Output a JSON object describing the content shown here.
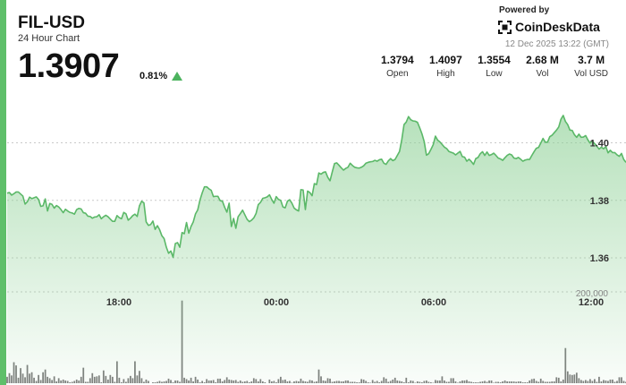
{
  "header": {
    "symbol": "FIL-USD",
    "subtitle": "24 Hour Chart",
    "price": "1.3907",
    "change": "0.81%",
    "change_direction": "up",
    "powered_by": "Powered by",
    "brand": "CoinDeskData",
    "timestamp": "12 Dec 2025 13:22 (GMT)"
  },
  "stats": [
    {
      "value": "1.3794",
      "label": "Open"
    },
    {
      "value": "1.4097",
      "label": "High"
    },
    {
      "value": "1.3554",
      "label": "Low"
    },
    {
      "value": "2.68 M",
      "label": "Vol"
    },
    {
      "value": "3.7 M",
      "label": "Vol USD"
    }
  ],
  "colors": {
    "accent": "#5fbf6a",
    "line": "#5bb868",
    "volume_bars": "#7d7d7d",
    "up": "#4cb35e"
  },
  "chart_data": {
    "type": "area",
    "title": "FIL-USD",
    "price_axis": {
      "ticks": [
        1.36,
        1.38,
        1.4
      ],
      "tick_labels": [
        "1.36",
        "1.38",
        "1.40"
      ],
      "ylim": [
        1.3485,
        1.4185
      ]
    },
    "volume_axis": {
      "tick_label": "200,000",
      "tick_value": 200000,
      "ylim": [
        0,
        200000
      ]
    },
    "time_axis": {
      "tick_labels": [
        "18:00",
        "00:00",
        "06:00",
        "12:00"
      ]
    },
    "price": [
      1.3825,
      1.3827,
      1.3818,
      1.3823,
      1.3829,
      1.3829,
      1.3822,
      1.3815,
      1.3787,
      1.3795,
      1.3811,
      1.3806,
      1.3809,
      1.3812,
      1.3803,
      1.3779,
      1.3781,
      1.3805,
      1.3763,
      1.3789,
      1.3786,
      1.3773,
      1.3782,
      1.3777,
      1.3768,
      1.3757,
      1.3769,
      1.3763,
      1.3758,
      1.3756,
      1.3752,
      1.3768,
      1.3772,
      1.377,
      1.3757,
      1.3755,
      1.3745,
      1.3744,
      1.3738,
      1.3742,
      1.3743,
      1.375,
      1.3736,
      1.3743,
      1.3748,
      1.3743,
      1.3735,
      1.3727,
      1.3727,
      1.3747,
      1.374,
      1.3736,
      1.3758,
      1.3753,
      1.3731,
      1.3738,
      1.3747,
      1.3752,
      1.3744,
      1.3781,
      1.3797,
      1.3791,
      1.3725,
      1.3713,
      1.3716,
      1.3728,
      1.3699,
      1.3712,
      1.3698,
      1.3677,
      1.3667,
      1.3637,
      1.3616,
      1.3624,
      1.3602,
      1.365,
      1.3653,
      1.3637,
      1.3688,
      1.3684,
      1.3723,
      1.3686,
      1.3709,
      1.3725,
      1.3753,
      1.3767,
      1.3801,
      1.3826,
      1.3847,
      1.3847,
      1.384,
      1.3835,
      1.3813,
      1.3814,
      1.3814,
      1.3799,
      1.3797,
      1.3776,
      1.3759,
      1.379,
      1.3709,
      1.3737,
      1.3703,
      1.3743,
      1.3754,
      1.3766,
      1.375,
      1.3734,
      1.3726,
      1.3731,
      1.3739,
      1.3754,
      1.3785,
      1.3793,
      1.3807,
      1.3809,
      1.3812,
      1.3819,
      1.3803,
      1.379,
      1.3813,
      1.3803,
      1.38,
      1.3777,
      1.3774,
      1.3797,
      1.3802,
      1.379,
      1.3773,
      1.3767,
      1.3763,
      1.3837,
      1.3836,
      1.3768,
      1.3832,
      1.3827,
      1.3816,
      1.3858,
      1.3855,
      1.3895,
      1.3891,
      1.3897,
      1.3899,
      1.388,
      1.3868,
      1.3899,
      1.3928,
      1.393,
      1.3922,
      1.3913,
      1.3905,
      1.3911,
      1.3915,
      1.3929,
      1.3921,
      1.3915,
      1.3913,
      1.3912,
      1.3915,
      1.392,
      1.3929,
      1.3932,
      1.3934,
      1.3935,
      1.3939,
      1.3936,
      1.3941,
      1.3943,
      1.3929,
      1.3925,
      1.3937,
      1.3945,
      1.3938,
      1.3942,
      1.3956,
      1.397,
      1.4011,
      1.4063,
      1.4072,
      1.4091,
      1.408,
      1.4076,
      1.4075,
      1.4071,
      1.4052,
      1.4031,
      1.4004,
      1.3957,
      1.3962,
      1.3977,
      1.3993,
      1.4023,
      1.4009,
      1.4003,
      1.3994,
      1.3985,
      1.398,
      1.397,
      1.3967,
      1.3964,
      1.3958,
      1.3964,
      1.397,
      1.3952,
      1.395,
      1.3936,
      1.3943,
      1.3935,
      1.3925,
      1.3945,
      1.3949,
      1.3962,
      1.3969,
      1.3956,
      1.3968,
      1.3956,
      1.3959,
      1.3964,
      1.3956,
      1.3947,
      1.3944,
      1.3939,
      1.3948,
      1.3956,
      1.3961,
      1.3958,
      1.3947,
      1.3945,
      1.3949,
      1.3943,
      1.3936,
      1.394,
      1.3942,
      1.3942,
      1.3956,
      1.3969,
      1.3981,
      1.3984,
      1.3999,
      1.4015,
      1.4002,
      1.4002,
      1.4021,
      1.4026,
      1.4035,
      1.4044,
      1.4055,
      1.4082,
      1.4095,
      1.4074,
      1.4063,
      1.4044,
      1.4043,
      1.4028,
      1.4019,
      1.403,
      1.4019,
      1.402,
      1.4025,
      1.401,
      1.3999,
      1.4006,
      1.3997,
      1.3988,
      1.3978,
      1.3985,
      1.3979,
      1.3987,
      1.3965,
      1.3974,
      1.3966,
      1.3966,
      1.3958,
      1.3953,
      1.3963,
      1.3942,
      1.3932
    ],
    "volume": [
      14000,
      22000,
      17000,
      46000,
      39000,
      12000,
      33000,
      21000,
      13000,
      40000,
      21000,
      24000,
      12000,
      5000,
      18000,
      7000,
      24000,
      30000,
      14000,
      11000,
      7000,
      15000,
      4000,
      11000,
      6000,
      8000,
      6000,
      5000,
      2000,
      3000,
      5000,
      8000,
      6000,
      14000,
      34000,
      3000,
      3000,
      11000,
      22000,
      14000,
      15000,
      17000,
      2000,
      28000,
      16000,
      8000,
      18000,
      14000,
      3000,
      48000,
      12000,
      2000,
      9000,
      3000,
      11000,
      16000,
      11000,
      48000,
      17000,
      27000,
      11000,
      3000,
      8000,
      5000,
      0,
      2000,
      2000,
      3000,
      5000,
      3000,
      4000,
      5000,
      10000,
      7000,
      2000,
      6000,
      6000,
      3000,
      181000,
      12000,
      9000,
      6000,
      12000,
      4000,
      14000,
      8000,
      2000,
      5000,
      2000,
      9000,
      6000,
      6000,
      7000,
      2000,
      10000,
      10000,
      4000,
      7000,
      13000,
      8000,
      7000,
      6000,
      7000,
      3000,
      6000,
      3000,
      4000,
      5000,
      2000,
      4000,
      11000,
      9000,
      4000,
      9000,
      4000,
      2000,
      0,
      8000,
      4000,
      5000,
      2000,
      9000,
      14000,
      7000,
      8000,
      4000,
      5000,
      1000,
      4000,
      5000,
      4000,
      10000,
      5000,
      4000,
      3000,
      7000,
      6000,
      3000,
      4000,
      30000,
      15000,
      6000,
      5000,
      11000,
      10000,
      3000,
      4000,
      5000,
      5000,
      4000,
      4000,
      6000,
      6000,
      3000,
      3000,
      3000,
      2000,
      2000,
      9000,
      8000,
      5000,
      2000,
      1000,
      7000,
      3000,
      5000,
      2000,
      5000,
      13000,
      10000,
      3000,
      5000,
      8000,
      12000,
      6000,
      5000,
      4000,
      2000,
      12000,
      2000,
      6000,
      5000,
      1000,
      4000,
      3000,
      2000,
      5000,
      6000,
      3000,
      2000,
      1000,
      7000,
      6000,
      6000,
      15000,
      6000,
      3000,
      3000,
      11000,
      11000,
      4000,
      1000,
      4000,
      6000,
      6000,
      7000,
      4000,
      3000,
      2000,
      2000,
      2000,
      3000,
      4000,
      5000,
      3000,
      6000,
      6000,
      1000,
      3000,
      3000,
      2000,
      4000,
      6000,
      4000,
      4000,
      4000,
      4000,
      3000,
      4000,
      4000,
      2000,
      2000,
      2000,
      6000,
      9000,
      10000,
      5000,
      3000,
      10000,
      5000,
      3000,
      3000,
      3000,
      4000,
      4000,
      13000,
      12000,
      4000,
      8000,
      77000,
      26000,
      19000,
      18000,
      19000,
      23000,
      11000,
      7000,
      5000,
      7000,
      5000,
      9000,
      5000,
      9000,
      3000,
      14000,
      4000,
      7000,
      6000,
      5000,
      8000,
      8000,
      3000,
      5000,
      13000,
      13000,
      5000,
      3000,
      2000,
      9000,
      8000
    ]
  }
}
